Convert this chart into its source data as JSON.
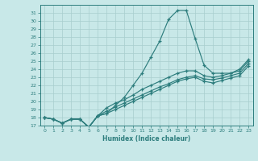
{
  "xlabel": "Humidex (Indice chaleur)",
  "x": [
    0,
    1,
    2,
    3,
    4,
    5,
    6,
    7,
    8,
    9,
    10,
    11,
    12,
    13,
    14,
    15,
    16,
    17,
    18,
    19,
    20,
    21,
    22,
    23
  ],
  "line1": [
    18.0,
    17.8,
    17.3,
    17.8,
    17.8,
    16.8,
    18.2,
    18.5,
    19.5,
    20.5,
    22.0,
    23.5,
    25.5,
    27.5,
    30.2,
    31.3,
    31.3,
    27.8,
    24.5,
    23.5,
    23.5,
    23.5,
    24.0,
    25.2
  ],
  "line2": [
    18.0,
    17.8,
    17.3,
    17.8,
    17.8,
    16.8,
    18.2,
    19.2,
    19.8,
    20.2,
    20.8,
    21.5,
    22.0,
    22.5,
    23.0,
    23.5,
    23.8,
    23.8,
    23.2,
    23.0,
    23.2,
    23.5,
    23.8,
    25.0
  ],
  "line3": [
    18.0,
    17.8,
    17.3,
    17.8,
    17.8,
    16.8,
    18.2,
    18.8,
    19.3,
    19.8,
    20.3,
    20.8,
    21.3,
    21.8,
    22.2,
    22.7,
    23.0,
    23.2,
    22.8,
    22.7,
    22.9,
    23.2,
    23.5,
    24.7
  ],
  "line4": [
    18.0,
    17.8,
    17.3,
    17.8,
    17.8,
    16.8,
    18.2,
    18.5,
    19.0,
    19.5,
    20.0,
    20.5,
    21.0,
    21.5,
    22.0,
    22.5,
    22.8,
    23.0,
    22.5,
    22.3,
    22.6,
    22.9,
    23.2,
    24.4
  ],
  "color": "#2d7d7d",
  "bg_color": "#c8e8e8",
  "grid_color": "#a8cece",
  "ylim": [
    17,
    32
  ],
  "xlim": [
    -0.5,
    23.5
  ],
  "yticks": [
    17,
    18,
    19,
    20,
    21,
    22,
    23,
    24,
    25,
    26,
    27,
    28,
    29,
    30,
    31
  ],
  "xticks": [
    0,
    1,
    2,
    3,
    4,
    5,
    6,
    7,
    8,
    9,
    10,
    11,
    12,
    13,
    14,
    15,
    16,
    17,
    18,
    19,
    20,
    21,
    22,
    23
  ]
}
